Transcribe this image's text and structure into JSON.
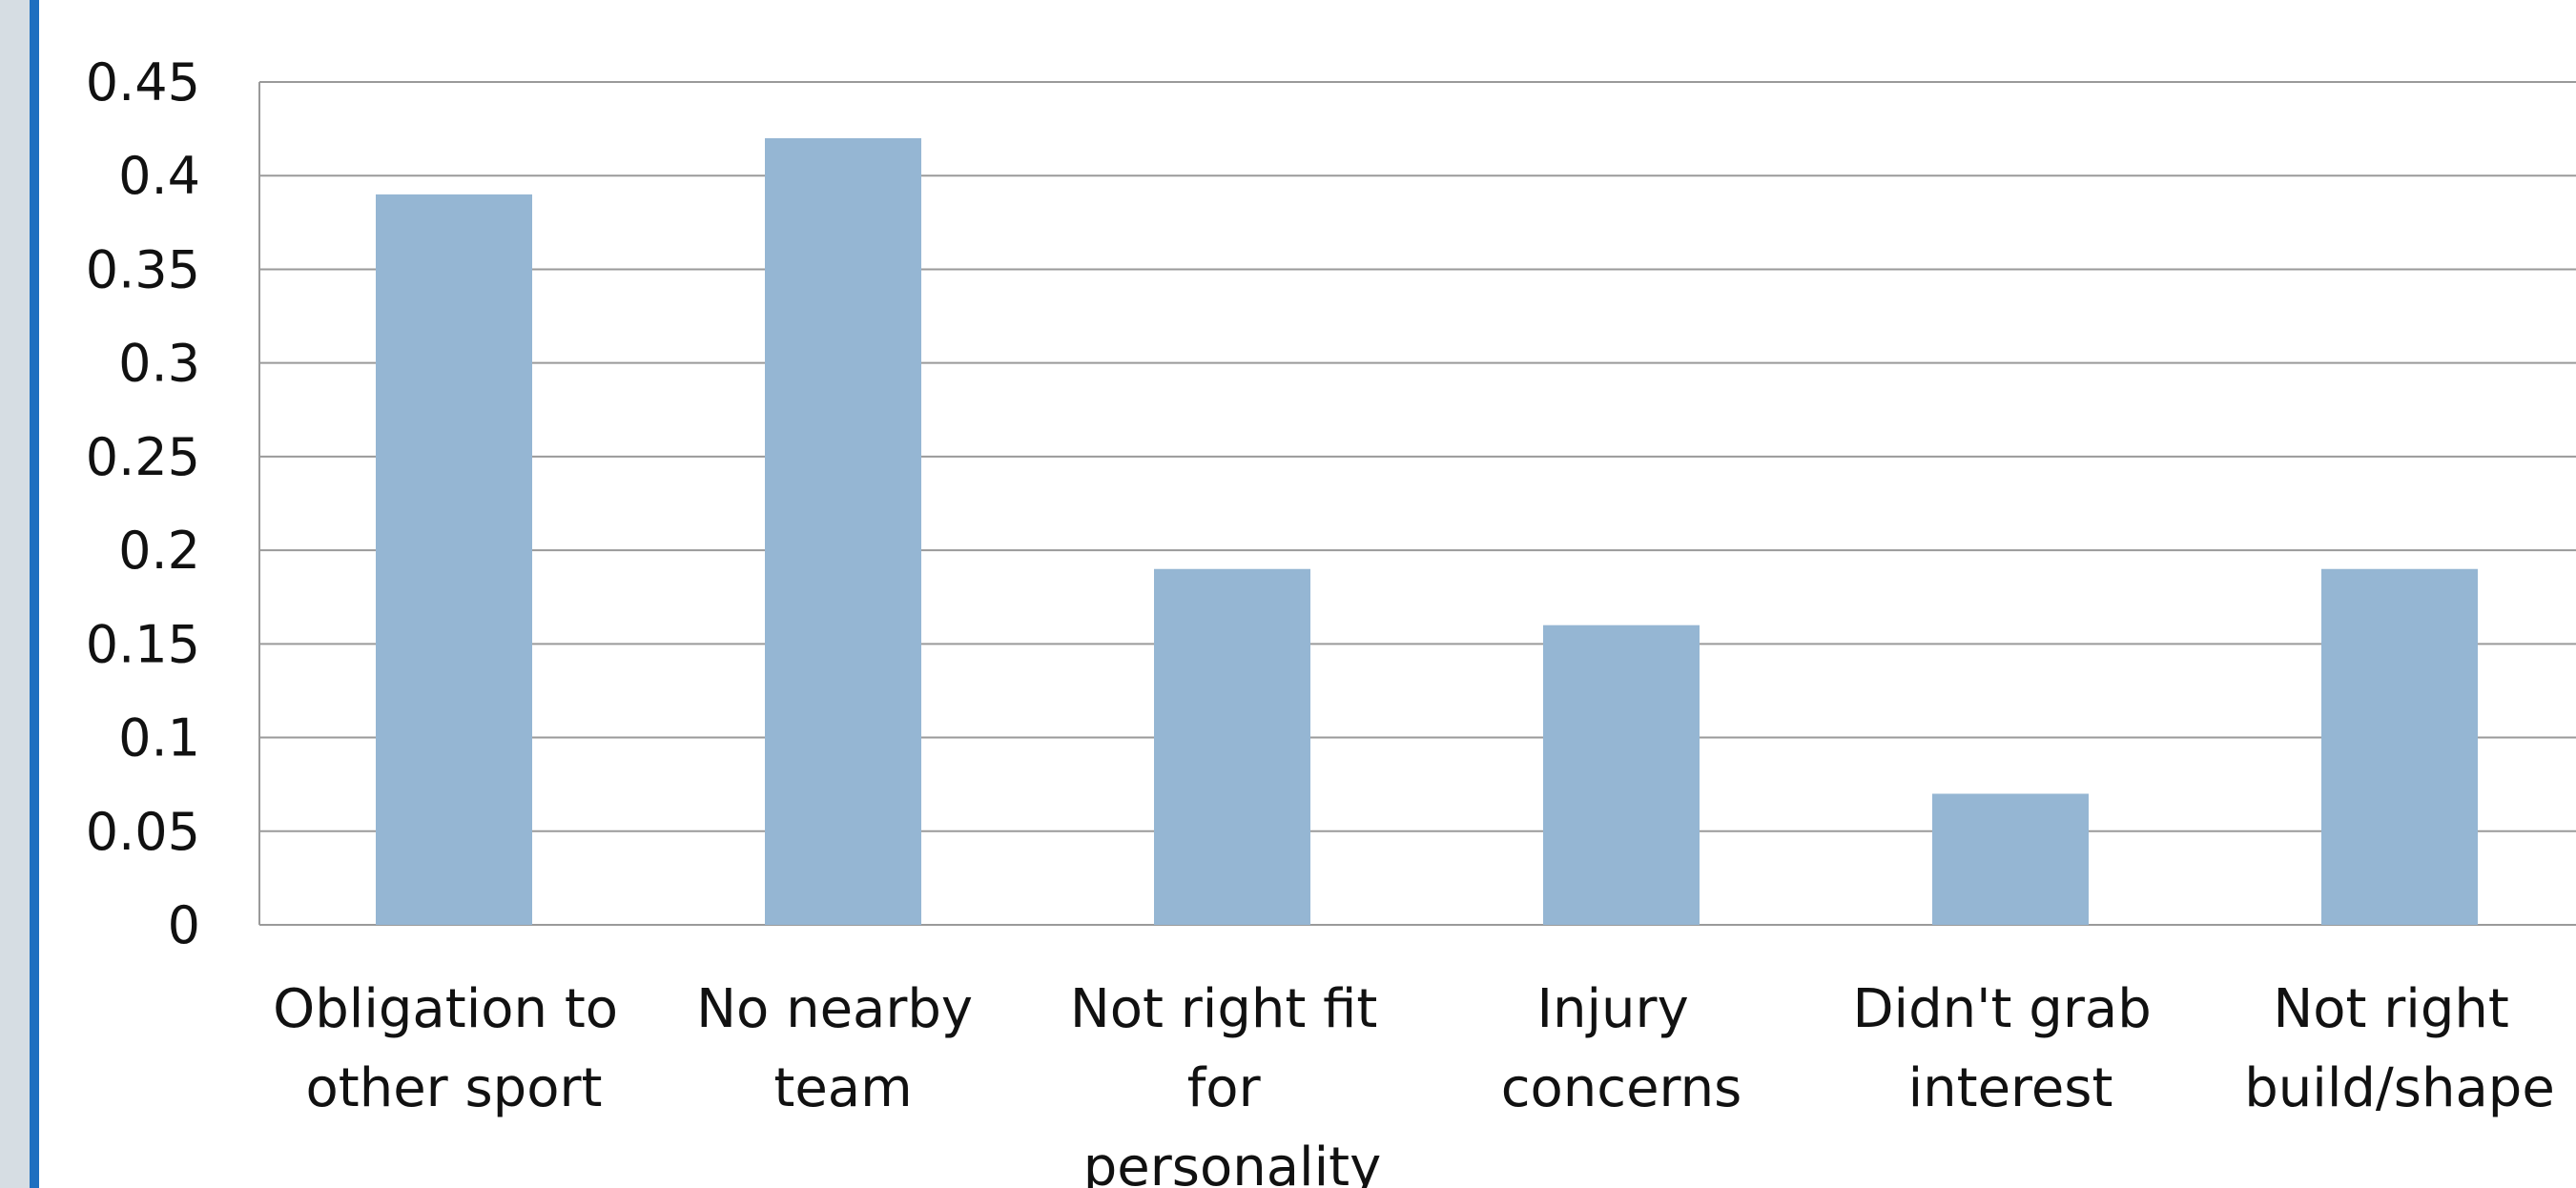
{
  "chart_data": {
    "type": "bar",
    "categories": [
      "Obligation to other sport",
      "No nearby team",
      "Not right fit for personality",
      "Injury concerns",
      "Didn't grab interest",
      "Not right build/shape"
    ],
    "values": [
      0.39,
      0.42,
      0.19,
      0.16,
      0.07,
      0.19
    ],
    "color": "#95b6d3",
    "ylim": [
      0,
      0.45
    ],
    "yticks": [
      0,
      0.05,
      0.1,
      0.15,
      0.2,
      0.25,
      0.3,
      0.35,
      0.4,
      0.45
    ],
    "grid": true
  }
}
